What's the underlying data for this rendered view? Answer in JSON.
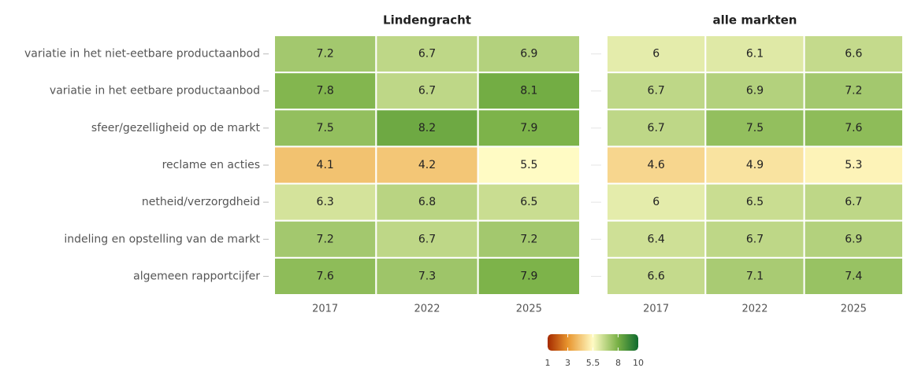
{
  "chart_data": {
    "type": "heatmap",
    "categories": [
      "variatie in het niet-eetbare productaanbod",
      "variatie in het eetbare productaanbod",
      "sfeer/gezelligheid op de markt",
      "reclame en acties",
      "netheid/verzorgdheid",
      "indeling en opstelling van de markt",
      "algemeen rapportcijfer"
    ],
    "panels": [
      {
        "title": "Lindengracht",
        "x": [
          "2017",
          "2022",
          "2025"
        ],
        "values": [
          [
            7.2,
            6.7,
            6.9
          ],
          [
            7.8,
            6.7,
            8.1
          ],
          [
            7.5,
            8.2,
            7.9
          ],
          [
            4.1,
            4.2,
            5.5
          ],
          [
            6.3,
            6.8,
            6.5
          ],
          [
            7.2,
            6.7,
            7.2
          ],
          [
            7.6,
            7.3,
            7.9
          ]
        ]
      },
      {
        "title": "alle markten",
        "x": [
          "2017",
          "2022",
          "2025"
        ],
        "values": [
          [
            6,
            6.1,
            6.6
          ],
          [
            6.7,
            6.9,
            7.2
          ],
          [
            6.7,
            7.5,
            7.6
          ],
          [
            4.6,
            4.9,
            5.3
          ],
          [
            6,
            6.5,
            6.7
          ],
          [
            6.4,
            6.7,
            6.9
          ],
          [
            6.6,
            7.1,
            7.4
          ]
        ]
      }
    ],
    "clim": [
      1,
      10
    ],
    "cticks": [
      1,
      3,
      5.5,
      8,
      10
    ],
    "colors": [
      "#a52a00",
      "#e8952e",
      "#fffbc4",
      "#78b045",
      "#0f6a2e"
    ]
  }
}
